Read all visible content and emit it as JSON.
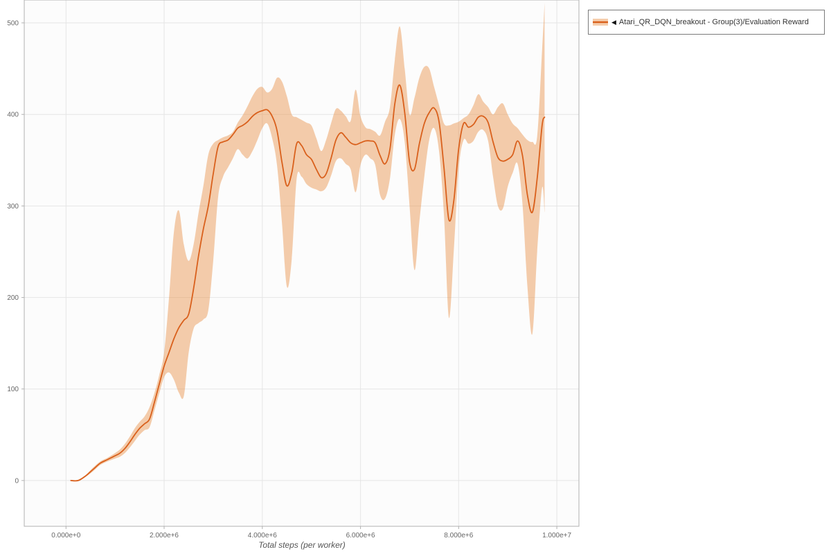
{
  "legend": {
    "marker": "◀",
    "label": "Atari_QR_DQN_breakout - Group(3)/Evaluation Reward"
  },
  "chart_data": {
    "type": "line",
    "title": "",
    "xlabel": "Total steps (per worker)",
    "ylabel": "",
    "x_unit_note": "x values are in millions of environment steps",
    "xlim_millions": [
      -0.85,
      10.45
    ],
    "ylim": [
      -50,
      525
    ],
    "grid": true,
    "legend_position": "top-right",
    "x_ticks": [
      {
        "value": 0,
        "label": "0.000e+0"
      },
      {
        "value": 2,
        "label": "2.000e+6"
      },
      {
        "value": 4,
        "label": "4.000e+6"
      },
      {
        "value": 6,
        "label": "6.000e+6"
      },
      {
        "value": 8,
        "label": "8.000e+6"
      },
      {
        "value": 10,
        "label": "1.000e+7"
      }
    ],
    "y_ticks": [
      {
        "value": 0,
        "label": "0"
      },
      {
        "value": 100,
        "label": "100"
      },
      {
        "value": 200,
        "label": "200"
      },
      {
        "value": 300,
        "label": "300"
      },
      {
        "value": 400,
        "label": "400"
      },
      {
        "value": 500,
        "label": "500"
      }
    ],
    "colors": {
      "line": "#d9601c",
      "band": "#e8873a",
      "band_opacity": 0.42,
      "grid": "#e5e5e5",
      "spine": "#b0b0b0",
      "tick_text": "#666666",
      "plot_background": "#fcfcfc"
    },
    "series": [
      {
        "name": "Atari_QR_DQN_breakout - Group(3)/Evaluation Reward",
        "x_millions": [
          0.1,
          0.25,
          0.4,
          0.55,
          0.7,
          0.85,
          1.0,
          1.1,
          1.2,
          1.3,
          1.4,
          1.5,
          1.6,
          1.7,
          1.8,
          1.9,
          2.0,
          2.1,
          2.2,
          2.3,
          2.4,
          2.5,
          2.6,
          2.7,
          2.8,
          2.9,
          3.0,
          3.1,
          3.2,
          3.3,
          3.4,
          3.5,
          3.6,
          3.7,
          3.8,
          3.9,
          4.0,
          4.1,
          4.2,
          4.3,
          4.4,
          4.5,
          4.6,
          4.7,
          4.8,
          4.9,
          5.0,
          5.1,
          5.2,
          5.3,
          5.4,
          5.5,
          5.6,
          5.7,
          5.8,
          5.9,
          6.0,
          6.1,
          6.2,
          6.3,
          6.4,
          6.5,
          6.6,
          6.7,
          6.8,
          6.9,
          7.0,
          7.1,
          7.2,
          7.3,
          7.4,
          7.5,
          7.6,
          7.7,
          7.8,
          7.9,
          8.0,
          8.1,
          8.2,
          8.3,
          8.4,
          8.5,
          8.6,
          8.7,
          8.8,
          8.9,
          9.0,
          9.1,
          9.2,
          9.3,
          9.4,
          9.5,
          9.6,
          9.7,
          9.75
        ],
        "mean": [
          0,
          0,
          5,
          12,
          19,
          23,
          27,
          30,
          35,
          42,
          50,
          57,
          62,
          67,
          85,
          105,
          125,
          140,
          155,
          167,
          175,
          182,
          210,
          245,
          275,
          300,
          335,
          365,
          370,
          372,
          378,
          385,
          388,
          392,
          398,
          402,
          404,
          405,
          398,
          382,
          348,
          322,
          336,
          368,
          366,
          356,
          351,
          340,
          331,
          335,
          352,
          372,
          380,
          375,
          369,
          367,
          369,
          371,
          371,
          369,
          355,
          346,
          362,
          412,
          432,
          402,
          348,
          340,
          368,
          390,
          402,
          407,
          392,
          342,
          285,
          305,
          362,
          390,
          386,
          389,
          397,
          398,
          391,
          370,
          353,
          349,
          351,
          356,
          371,
          355,
          312,
          293,
          330,
          388,
          397
        ],
        "lower": [
          0,
          0,
          4,
          10,
          17,
          21,
          24,
          26,
          30,
          36,
          43,
          50,
          55,
          58,
          76,
          95,
          113,
          118,
          110,
          96,
          92,
          140,
          166,
          172,
          176,
          186,
          240,
          310,
          332,
          342,
          352,
          362,
          356,
          352,
          360,
          372,
          385,
          390,
          374,
          344,
          282,
          212,
          242,
          330,
          332,
          324,
          320,
          318,
          316,
          320,
          333,
          349,
          352,
          346,
          340,
          315,
          345,
          356,
          352,
          345,
          312,
          308,
          330,
          378,
          395,
          370,
          300,
          230,
          283,
          332,
          372,
          385,
          360,
          290,
          178,
          250,
          340,
          372,
          368,
          371,
          381,
          383,
          371,
          332,
          300,
          297,
          321,
          336,
          346,
          302,
          212,
          160,
          250,
          320,
          293
        ],
        "upper": [
          0,
          1,
          6,
          14,
          21,
          25,
          30,
          34,
          40,
          48,
          57,
          64,
          70,
          80,
          95,
          115,
          140,
          200,
          272,
          295,
          258,
          240,
          258,
          292,
          322,
          356,
          368,
          372,
          375,
          377,
          381,
          391,
          399,
          409,
          420,
          428,
          430,
          424,
          428,
          440,
          436,
          420,
          400,
          397,
          394,
          391,
          388,
          374,
          360,
          372,
          390,
          406,
          404,
          398,
          393,
          427,
          398,
          386,
          384,
          381,
          377,
          392,
          408,
          460,
          496,
          450,
          400,
          418,
          440,
          452,
          450,
          430,
          410,
          390,
          388,
          390,
          392,
          396,
          400,
          410,
          422,
          414,
          408,
          400,
          408,
          412,
          400,
          390,
          385,
          378,
          372,
          370,
          376,
          470,
          522
        ]
      }
    ]
  }
}
